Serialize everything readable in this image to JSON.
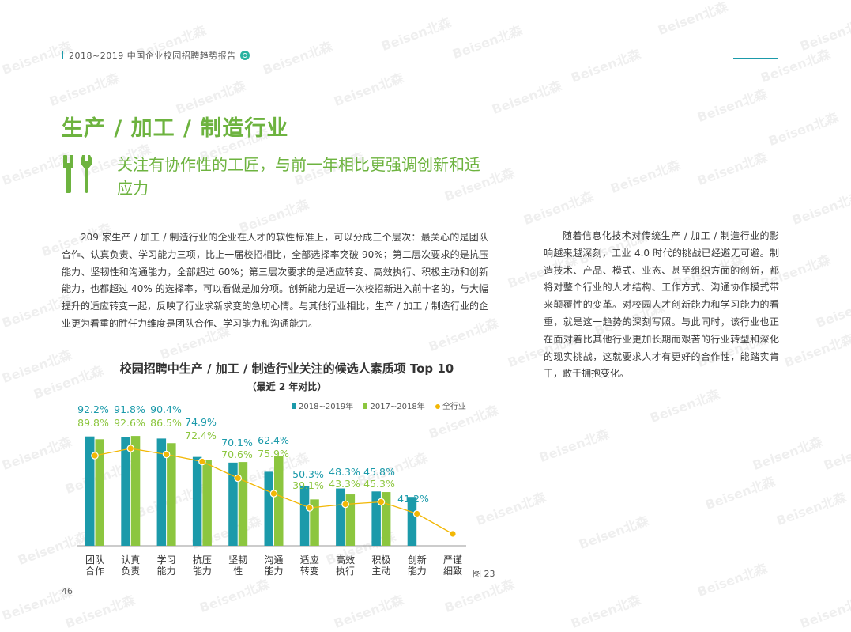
{
  "header": {
    "text": "2018~2019 中国企业校园招聘趋势报告"
  },
  "section": {
    "title": "生产 / 加工 / 制造行业",
    "subtitle": "关注有协作性的工匠，与前一年相比更强调创新和适应力"
  },
  "body_left": "209 家生产 / 加工 / 制造行业的企业在人才的软性标准上，可以分成三个层次：最关心的是团队合作、认真负责、学习能力三项，比上一届校招相比，全部选择率突破 90%；第二层次要求的是抗压能力、坚韧性和沟通能力，全部超过 60%；第三层次要求的是适应转变、高效执行、积极主动和创新能力，也都超过 40% 的选择率，可以看做是加分项。创新能力是近一次校招新进入前十名的，与大幅提升的适应转变一起，反映了行业求新求变的急切心情。与其他行业相比，生产 / 加工 / 制造行业的企业更为看重的胜任力维度是团队合作、学习能力和沟通能力。",
  "body_right": "随着信息化技术对传统生产 / 加工 / 制造行业的影响越来越深刻，工业 4.0 时代的挑战已经避无可避。制造技术、产品、模式、业态、甚至组织方面的创新，都将对整个行业的人才结构、工作方式、沟通协作模式带来颠覆性的变革。对校园人才创新能力和学习能力的看重，就是这一趋势的深刻写照。与此同时，该行业也正在面对着比其他行业更加长期而艰苦的行业转型和深化的现实挑战，这就要求人才有更好的合作性，能踏实肯干，敢于拥抱变化。",
  "figure_label": "图 23",
  "page_number": "46",
  "watermark": "Beisen北森",
  "icons": {
    "tools": "wrench-screwdriver-icon",
    "header": "search-icon"
  },
  "colors": {
    "green": "#6db33f",
    "teal": "#1b9aaa",
    "light_green": "#8cc63f",
    "gold": "#f2b705"
  },
  "chart_data": {
    "type": "bar",
    "title": "校园招聘中生产 / 加工 / 制造行业关注的候选人素质项 Top 10",
    "subtitle": "（最近 2 年对比）",
    "categories": [
      [
        "团队",
        "合作"
      ],
      [
        "认真",
        "负责"
      ],
      [
        "学习",
        "能力"
      ],
      [
        "抗压",
        "能力"
      ],
      [
        "坚韧",
        "性"
      ],
      [
        "沟通",
        "能力"
      ],
      [
        "适应",
        "转变"
      ],
      [
        "高效",
        "执行"
      ],
      [
        "积极",
        "主动"
      ],
      [
        "创新",
        "能力"
      ],
      [
        "严谨",
        "细致"
      ]
    ],
    "series": [
      {
        "name": "2018~2019年",
        "kind": "bar",
        "color": "#1b9aaa",
        "values": [
          92.2,
          91.8,
          90.4,
          74.9,
          70.1,
          62.4,
          50.3,
          48.3,
          45.8,
          41.2,
          null
        ],
        "labels": [
          "92.2%",
          "91.8%",
          "90.4%",
          "74.9%",
          "70.1%",
          "62.4%",
          "50.3%",
          "48.3%",
          "45.8%",
          "41.2%",
          ""
        ]
      },
      {
        "name": "2017~2018年",
        "kind": "bar",
        "color": "#8cc63f",
        "values": [
          89.8,
          92.6,
          86.5,
          72.4,
          70.6,
          75.9,
          39.1,
          43.3,
          45.3,
          null,
          null
        ],
        "labels": [
          "89.8%",
          "92.6%",
          "86.5%",
          "72.4%",
          "70.6%",
          "75.9%",
          "39.1%",
          "43.3%",
          "45.3%",
          "",
          ""
        ]
      },
      {
        "name": "全行业",
        "kind": "line",
        "color": "#f2b705",
        "values": [
          76,
          82,
          77,
          71,
          57,
          44,
          32,
          35,
          37,
          27,
          10
        ]
      }
    ],
    "ylim": [
      0,
      100
    ]
  }
}
